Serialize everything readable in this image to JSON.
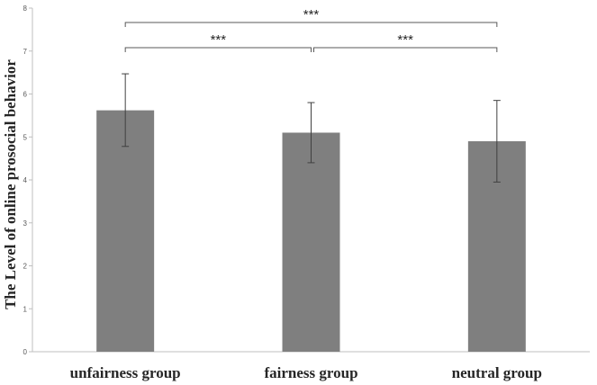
{
  "chart_data": {
    "type": "bar",
    "title": "",
    "xlabel": "",
    "ylabel": "The Level of online prosocial behavior",
    "categories": [
      "unfairness group",
      "fairness group",
      "neutral group"
    ],
    "values": [
      5.62,
      5.1,
      4.9
    ],
    "error_upper": [
      6.47,
      5.8,
      5.85
    ],
    "error_lower": [
      4.78,
      4.4,
      3.95
    ],
    "ylim": [
      0,
      8
    ],
    "yticks": [
      "0",
      "1",
      "2",
      "3",
      "4",
      "5",
      "6",
      "7",
      "8"
    ],
    "grid": false,
    "bar_color": "#7f7f7f",
    "significance": [
      {
        "from": 0,
        "to": 2,
        "label": "***"
      },
      {
        "from": 0,
        "to": 1,
        "label": "***"
      },
      {
        "from": 1,
        "to": 2,
        "label": "***"
      }
    ]
  }
}
